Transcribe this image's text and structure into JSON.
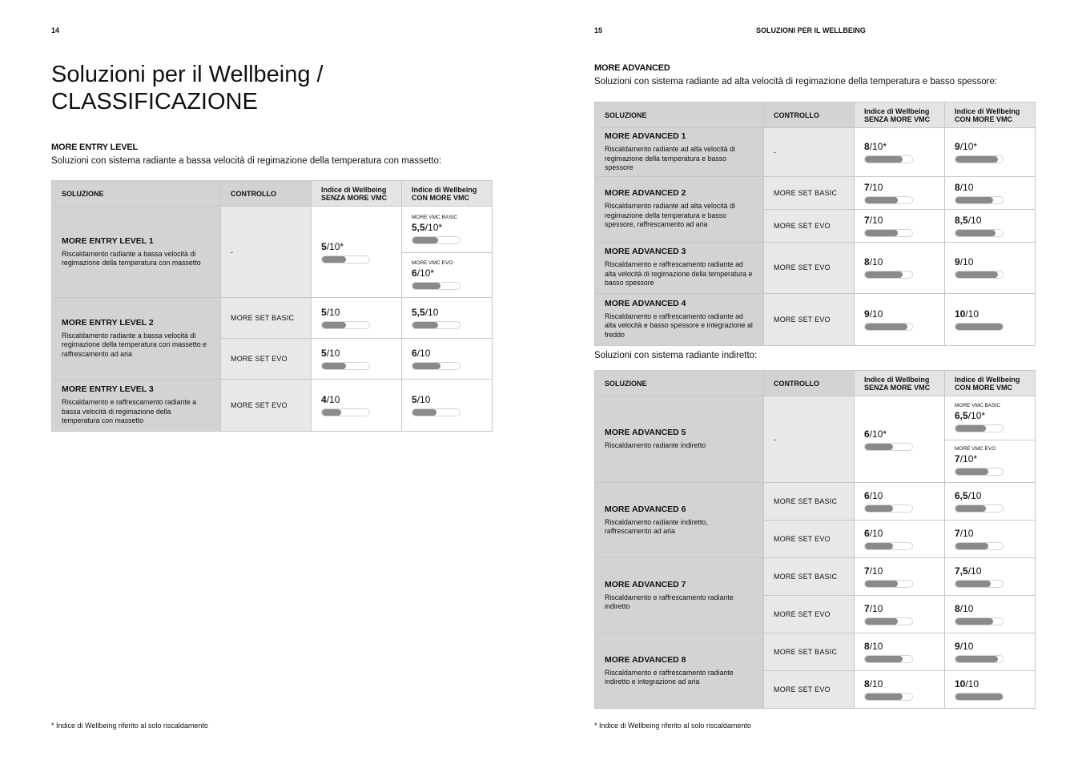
{
  "left_page": {
    "page_number": "14",
    "title_line1": "Soluzioni per il Wellbeing /",
    "title_line2": "CLASSIFICAZIONE",
    "section_title": "MORE ENTRY LEVEL",
    "section_subtitle": "Soluzioni con sistema radiante a bassa velocità di regimazione della temperatura con massetto:",
    "footnote": "* Indice di Wellbeing riferito al solo riscaldamento"
  },
  "right_page": {
    "page_number": "15",
    "running_header": "SOLUZIONI PER IL WELLBEING",
    "section_title": "MORE ADVANCED",
    "section_subtitle": "Soluzioni con sistema radiante ad alta velocità di regimazione della temperatura e basso spessore:",
    "section2_subtitle": "Soluzioni con sistema radiante indiretto:",
    "footnote": "* Indice di Wellbeing riferito al solo riscaldamento"
  },
  "bar_colors": {
    "fill": "#8a8a8a",
    "track": "#ffffff"
  },
  "table_headers": {
    "solution": "SOLUZIONE",
    "control": "CONTROLLO",
    "without_l1": "Indice di Wellbeing",
    "without_l2": "SENZA MORE VMC",
    "with_l1": "Indice di Wellbeing",
    "with_l2": "CON MORE VMC"
  },
  "tables": [
    {
      "solutions": [
        {
          "name": "MORE ENTRY LEVEL 1",
          "description": "Riscaldamento radiante a bassa velocità di regimazione della temperatura con massetto",
          "rows": [
            {
              "control": "-",
              "without": {
                "value": "5",
                "suffix": "/10*",
                "fraction": 0.5
              },
              "with": [
                {
                  "label": "MORE VMC BASIC",
                  "value": "5,5",
                  "suffix": "/10*",
                  "fraction": 0.55
                },
                {
                  "label": "MORE VMC EVO",
                  "value": "6",
                  "suffix": "/10*",
                  "fraction": 0.6
                }
              ]
            }
          ]
        },
        {
          "name": "MORE ENTRY LEVEL 2",
          "description": "Riscaldamento radiante a bassa velocità di regimazione della temperatura con massetto e raffrescamento ad aria",
          "rows": [
            {
              "control": "MORE SET BASIC",
              "without": {
                "value": "5",
                "suffix": "/10",
                "fraction": 0.5
              },
              "with": [
                {
                  "value": "5,5",
                  "suffix": "/10",
                  "fraction": 0.55
                }
              ]
            },
            {
              "control": "MORE SET EVO",
              "without": {
                "value": "5",
                "suffix": "/10",
                "fraction": 0.5
              },
              "with": [
                {
                  "value": "6",
                  "suffix": "/10",
                  "fraction": 0.6
                }
              ]
            }
          ]
        },
        {
          "name": "MORE ENTRY LEVEL 3",
          "description": "Riscaldamento e raffrescamento radiante a bassa velocità di regimazione della temperatura con massetto",
          "rows": [
            {
              "control": "MORE SET EVO",
              "without": {
                "value": "4",
                "suffix": "/10",
                "fraction": 0.4
              },
              "with": [
                {
                  "value": "5",
                  "suffix": "/10",
                  "fraction": 0.5
                }
              ]
            }
          ]
        }
      ]
    },
    {
      "solutions": [
        {
          "name": "MORE ADVANCED 1",
          "description": "Riscaldamento radiante ad alta velocità di regimazione della temperatura e basso spessore",
          "rows": [
            {
              "control": "-",
              "without": {
                "value": "8",
                "suffix": "/10*",
                "fraction": 0.8
              },
              "with": [
                {
                  "value": "9",
                  "suffix": "/10*",
                  "fraction": 0.9
                }
              ]
            }
          ]
        },
        {
          "name": "MORE ADVANCED 2",
          "description": "Riscaldamento radiante ad alta velocità di regimazione della temperatura e basso spessore, raffrescamento ad aria",
          "rows": [
            {
              "control": "MORE SET BASIC",
              "without": {
                "value": "7",
                "suffix": "/10",
                "fraction": 0.7
              },
              "with": [
                {
                  "value": "8",
                  "suffix": "/10",
                  "fraction": 0.8
                }
              ]
            },
            {
              "control": "MORE SET EVO",
              "without": {
                "value": "7",
                "suffix": "/10",
                "fraction": 0.7
              },
              "with": [
                {
                  "value": "8,5",
                  "suffix": "/10",
                  "fraction": 0.85
                }
              ]
            }
          ]
        },
        {
          "name": "MORE ADVANCED 3",
          "description": "Riscaldamento e raffrescamento radiante ad alta velocità di regimazione della temperatura e basso spessore",
          "rows": [
            {
              "control": "MORE SET EVO",
              "without": {
                "value": "8",
                "suffix": "/10",
                "fraction": 0.8
              },
              "with": [
                {
                  "value": "9",
                  "suffix": "/10",
                  "fraction": 0.9
                }
              ]
            }
          ]
        },
        {
          "name": "MORE ADVANCED 4",
          "description": "Riscaldamento e raffrescamento radiante ad alta velocità e basso spessore e integrazione al freddo",
          "rows": [
            {
              "control": "MORE SET EVO",
              "without": {
                "value": "9",
                "suffix": "/10",
                "fraction": 0.9
              },
              "with": [
                {
                  "value": "10",
                  "suffix": "/10",
                  "fraction": 1.0
                }
              ]
            }
          ]
        }
      ]
    },
    {
      "solutions": [
        {
          "name": "MORE ADVANCED 5",
          "description": "Riscaldamento radiante indiretto",
          "rows": [
            {
              "control": "-",
              "without": {
                "value": "6",
                "suffix": "/10*",
                "fraction": 0.6
              },
              "with": [
                {
                  "label": "MORE VMC BASIC",
                  "value": "6,5",
                  "suffix": "/10*",
                  "fraction": 0.65
                },
                {
                  "label": "MORE VMC EVO",
                  "value": "7",
                  "suffix": "/10*",
                  "fraction": 0.7
                }
              ]
            }
          ]
        },
        {
          "name": "MORE ADVANCED 6",
          "description": "Riscaldamento radiante indiretto, raffrescamento ad aria",
          "rows": [
            {
              "control": "MORE SET BASIC",
              "without": {
                "value": "6",
                "suffix": "/10",
                "fraction": 0.6
              },
              "with": [
                {
                  "value": "6,5",
                  "suffix": "/10",
                  "fraction": 0.65
                }
              ]
            },
            {
              "control": "MORE SET EVO",
              "without": {
                "value": "6",
                "suffix": "/10",
                "fraction": 0.6
              },
              "with": [
                {
                  "value": "7",
                  "suffix": "/10",
                  "fraction": 0.7
                }
              ]
            }
          ]
        },
        {
          "name": "MORE ADVANCED 7",
          "description": "Riscaldamento e raffrescamento radiante indiretto",
          "rows": [
            {
              "control": "MORE SET BASIC",
              "without": {
                "value": "7",
                "suffix": "/10",
                "fraction": 0.7
              },
              "with": [
                {
                  "value": "7,5",
                  "suffix": "/10",
                  "fraction": 0.75
                }
              ]
            },
            {
              "control": "MORE SET EVO",
              "without": {
                "value": "7",
                "suffix": "/10",
                "fraction": 0.7
              },
              "with": [
                {
                  "value": "8",
                  "suffix": "/10",
                  "fraction": 0.8
                }
              ]
            }
          ]
        },
        {
          "name": "MORE ADVANCED 8",
          "description": "Riscaldamento e raffrescamento radiante indiretto e integrazione ad aria",
          "rows": [
            {
              "control": "MORE SET BASIC",
              "without": {
                "value": "8",
                "suffix": "/10",
                "fraction": 0.8
              },
              "with": [
                {
                  "value": "9",
                  "suffix": "/10",
                  "fraction": 0.9
                }
              ]
            },
            {
              "control": "MORE SET EVO",
              "without": {
                "value": "8",
                "suffix": "/10",
                "fraction": 0.8
              },
              "with": [
                {
                  "value": "10",
                  "suffix": "/10",
                  "fraction": 1.0
                }
              ]
            }
          ]
        }
      ]
    }
  ]
}
